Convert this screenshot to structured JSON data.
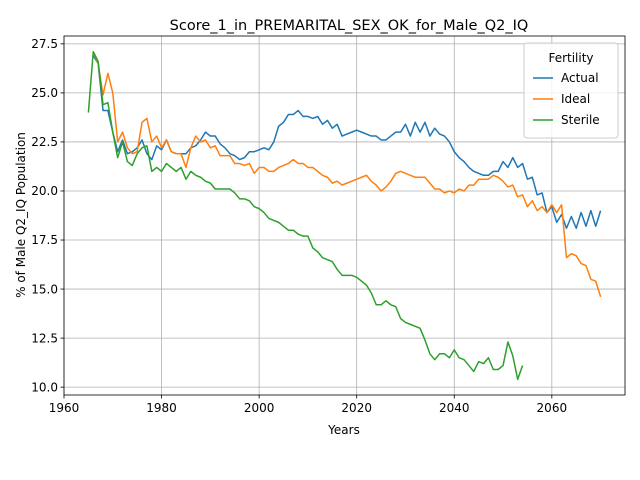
{
  "chart_data": {
    "type": "line",
    "title": "Score_1_in_PREMARITAL_SEX_OK_for_Male_Q2_IQ",
    "xlabel": "Years",
    "ylabel": "% of Male Q2_IQ Population",
    "xlim": [
      1960,
      2075
    ],
    "ylim": [
      9.6,
      27.9
    ],
    "xticks": [
      1960,
      1980,
      2000,
      2020,
      2040,
      2060
    ],
    "yticks": [
      10.0,
      12.5,
      15.0,
      17.5,
      20.0,
      22.5,
      25.0,
      27.5
    ],
    "grid": true,
    "legend": {
      "title": "Fertility",
      "placement": "top-right"
    },
    "series": [
      {
        "name": "Actual",
        "color": "#1f77b4",
        "x": [
          1966,
          1967,
          1968,
          1969,
          1970,
          1971,
          1972,
          1973,
          1974,
          1975,
          1976,
          1977,
          1978,
          1979,
          1980,
          1981,
          1982,
          1983,
          1984,
          1985,
          1986,
          1987,
          1988,
          1989,
          1990,
          1991,
          1992,
          1993,
          1994,
          1995,
          1996,
          1997,
          1998,
          1999,
          2000,
          2001,
          2002,
          2003,
          2004,
          2005,
          2006,
          2007,
          2008,
          2009,
          2010,
          2011,
          2012,
          2013,
          2014,
          2015,
          2016,
          2017,
          2018,
          2019,
          2020,
          2021,
          2022,
          2023,
          2024,
          2025,
          2026,
          2027,
          2028,
          2029,
          2030,
          2031,
          2032,
          2033,
          2034,
          2035,
          2036,
          2037,
          2038,
          2039,
          2040,
          2041,
          2042,
          2043,
          2044,
          2045,
          2046,
          2047,
          2048,
          2049,
          2050,
          2051,
          2052,
          2053,
          2054,
          2055,
          2056,
          2057,
          2058,
          2059,
          2060,
          2061,
          2062,
          2063,
          2064,
          2065,
          2066,
          2067,
          2068,
          2069,
          2070
        ],
        "y": [
          26.9,
          26.5,
          24.1,
          24.1,
          23.0,
          22.0,
          22.6,
          21.9,
          22.0,
          22.2,
          22.6,
          21.9,
          21.6,
          22.3,
          22.1,
          22.6,
          22.0,
          21.9,
          21.9,
          21.9,
          22.2,
          22.3,
          22.6,
          23.0,
          22.8,
          22.8,
          22.4,
          22.2,
          21.9,
          21.8,
          21.6,
          21.7,
          22.0,
          22.0,
          22.1,
          22.2,
          22.1,
          22.5,
          23.3,
          23.5,
          23.9,
          23.9,
          24.1,
          23.8,
          23.8,
          23.7,
          23.8,
          23.4,
          23.6,
          23.2,
          23.4,
          22.8,
          22.9,
          23.0,
          23.1,
          23.0,
          22.9,
          22.8,
          22.8,
          22.6,
          22.6,
          22.8,
          23.0,
          23.0,
          23.4,
          22.8,
          23.5,
          23.0,
          23.5,
          22.8,
          23.2,
          22.9,
          22.8,
          22.5,
          22.0,
          21.7,
          21.5,
          21.2,
          21.0,
          20.9,
          20.8,
          20.8,
          21.0,
          21.0,
          21.5,
          21.2,
          21.7,
          21.2,
          21.4,
          20.6,
          20.7,
          19.8,
          19.9,
          18.9,
          19.2,
          18.4,
          18.8,
          18.1,
          18.7,
          18.1,
          18.9,
          18.2,
          19.0,
          18.2,
          19.0
        ]
      },
      {
        "name": "Ideal",
        "color": "#ff7f0e",
        "x": [
          1966,
          1967,
          1968,
          1969,
          1970,
          1971,
          1972,
          1973,
          1974,
          1975,
          1976,
          1977,
          1978,
          1979,
          1980,
          1981,
          1982,
          1983,
          1984,
          1985,
          1986,
          1987,
          1988,
          1989,
          1990,
          1991,
          1992,
          1993,
          1994,
          1995,
          1996,
          1997,
          1998,
          1999,
          2000,
          2001,
          2002,
          2003,
          2004,
          2005,
          2006,
          2007,
          2008,
          2009,
          2010,
          2011,
          2012,
          2013,
          2014,
          2015,
          2016,
          2017,
          2018,
          2019,
          2020,
          2021,
          2022,
          2023,
          2024,
          2025,
          2026,
          2027,
          2028,
          2029,
          2030,
          2031,
          2032,
          2033,
          2034,
          2035,
          2036,
          2037,
          2038,
          2039,
          2040,
          2041,
          2042,
          2043,
          2044,
          2045,
          2046,
          2047,
          2048,
          2049,
          2050,
          2051,
          2052,
          2053,
          2054,
          2055,
          2056,
          2057,
          2058,
          2059,
          2060,
          2061,
          2062,
          2063,
          2064,
          2065,
          2066,
          2067,
          2068,
          2069,
          2070
        ],
        "y": [
          27.1,
          26.5,
          24.9,
          26.0,
          25.0,
          22.5,
          23.0,
          22.2,
          21.9,
          22.0,
          23.5,
          23.7,
          22.5,
          22.8,
          22.2,
          22.6,
          22.0,
          21.9,
          21.9,
          21.2,
          22.2,
          22.8,
          22.5,
          22.6,
          22.2,
          22.3,
          21.8,
          21.8,
          21.8,
          21.4,
          21.4,
          21.3,
          21.4,
          20.9,
          21.2,
          21.2,
          21.0,
          21.0,
          21.2,
          21.3,
          21.4,
          21.6,
          21.4,
          21.4,
          21.2,
          21.2,
          21.0,
          20.8,
          20.7,
          20.4,
          20.5,
          20.3,
          20.4,
          20.5,
          20.6,
          20.7,
          20.8,
          20.5,
          20.3,
          20.0,
          20.2,
          20.5,
          20.9,
          21.0,
          20.9,
          20.8,
          20.7,
          20.7,
          20.7,
          20.4,
          20.1,
          20.1,
          19.9,
          20.0,
          19.9,
          20.1,
          20.0,
          20.3,
          20.3,
          20.6,
          20.6,
          20.6,
          20.8,
          20.7,
          20.5,
          20.2,
          20.3,
          19.7,
          19.8,
          19.2,
          19.5,
          19.0,
          19.2,
          18.9,
          19.3,
          18.9,
          19.3,
          16.6,
          16.8,
          16.7,
          16.3,
          16.2,
          15.5,
          15.4,
          14.6
        ]
      },
      {
        "name": "Sterile",
        "color": "#2ca02c",
        "x": [
          1965,
          1966,
          1967,
          1968,
          1969,
          1970,
          1971,
          1972,
          1973,
          1974,
          1975,
          1976,
          1977,
          1978,
          1979,
          1980,
          1981,
          1982,
          1983,
          1984,
          1985,
          1986,
          1987,
          1988,
          1989,
          1990,
          1991,
          1992,
          1993,
          1994,
          1995,
          1996,
          1997,
          1998,
          1999,
          2000,
          2001,
          2002,
          2003,
          2004,
          2005,
          2006,
          2007,
          2008,
          2009,
          2010,
          2011,
          2012,
          2013,
          2014,
          2015,
          2016,
          2017,
          2018,
          2019,
          2020,
          2021,
          2022,
          2023,
          2024,
          2025,
          2026,
          2027,
          2028,
          2029,
          2030,
          2031,
          2032,
          2033,
          2034,
          2035,
          2036,
          2037,
          2038,
          2039,
          2040,
          2041,
          2042,
          2043,
          2044,
          2045,
          2046,
          2047,
          2048,
          2049,
          2050,
          2051,
          2052,
          2053,
          2054,
          2055
        ],
        "y": [
          24.0,
          27.1,
          26.6,
          24.4,
          24.5,
          23.0,
          21.7,
          22.5,
          21.5,
          21.3,
          21.9,
          22.2,
          22.3,
          21.0,
          21.2,
          21.0,
          21.4,
          21.2,
          21.0,
          21.2,
          20.6,
          21.0,
          20.8,
          20.7,
          20.5,
          20.4,
          20.1,
          20.1,
          20.1,
          20.1,
          19.9,
          19.6,
          19.6,
          19.5,
          19.2,
          19.1,
          18.9,
          18.6,
          18.5,
          18.4,
          18.2,
          18.0,
          18.0,
          17.8,
          17.7,
          17.7,
          17.1,
          16.9,
          16.6,
          16.5,
          16.4,
          16.0,
          15.7,
          15.7,
          15.7,
          15.6,
          15.4,
          15.2,
          14.8,
          14.2,
          14.2,
          14.4,
          14.2,
          14.1,
          13.5,
          13.3,
          13.2,
          13.1,
          13.0,
          12.4,
          11.7,
          11.4,
          11.7,
          11.7,
          11.5,
          11.9,
          11.5,
          11.4,
          11.1,
          10.8,
          11.3,
          11.2,
          11.5,
          10.9,
          10.9,
          11.1,
          12.3,
          11.6,
          10.4,
          11.1,
          null
        ]
      }
    ]
  }
}
